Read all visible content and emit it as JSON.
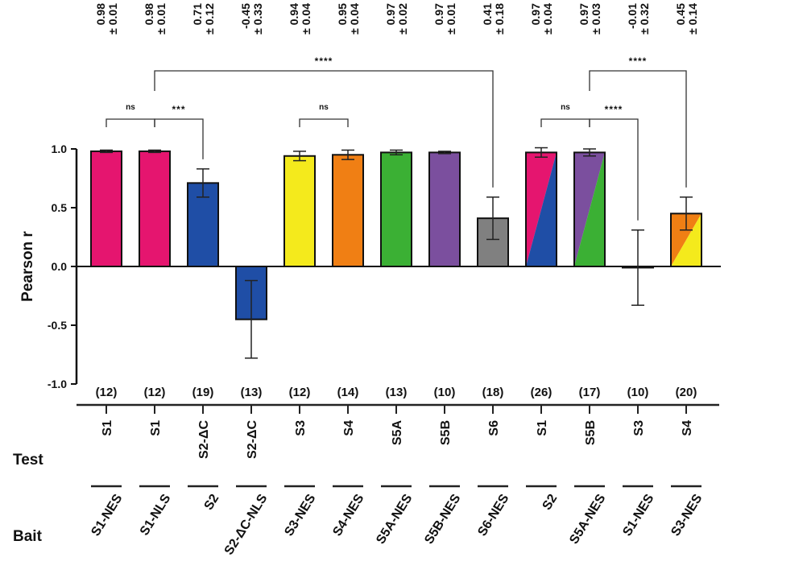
{
  "chart_data": {
    "type": "bar",
    "ylabel": "Pearson r",
    "ylim": [
      -1.0,
      1.0
    ],
    "yticks": [
      "1.0",
      "0.5",
      "0.0",
      "-0.5",
      "-1.0"
    ],
    "ytick_values": [
      1.0,
      0.5,
      0.0,
      -0.5,
      -1.0
    ],
    "row_labels": {
      "test": "Test",
      "bait": "Bait"
    },
    "categories": [
      {
        "test": "S1",
        "bait": "S1-NES",
        "mean": 0.98,
        "sd": 0.01,
        "n": "(12)",
        "mean_label": "0.98",
        "sd_label": "± 0.01",
        "colors": [
          "#e5156f"
        ]
      },
      {
        "test": "S1",
        "bait": "S1-NLS",
        "mean": 0.98,
        "sd": 0.01,
        "n": "(12)",
        "mean_label": "0.98",
        "sd_label": "± 0.01",
        "colors": [
          "#e5156f"
        ]
      },
      {
        "test": "S2-ΔC",
        "bait": "S2",
        "mean": 0.71,
        "sd": 0.12,
        "n": "(19)",
        "mean_label": "0.71",
        "sd_label": "± 0.12",
        "colors": [
          "#1f4ea6"
        ]
      },
      {
        "test": "S2-ΔC",
        "bait": "S2-ΔC-NLS",
        "mean": -0.45,
        "sd": 0.33,
        "n": "(13)",
        "mean_label": "-0.45",
        "sd_label": "± 0.33",
        "colors": [
          "#1f4ea6"
        ]
      },
      {
        "test": "S3",
        "bait": "S3-NES",
        "mean": 0.94,
        "sd": 0.04,
        "n": "(12)",
        "mean_label": "0.94",
        "sd_label": "± 0.04",
        "colors": [
          "#f4ea1c"
        ]
      },
      {
        "test": "S4",
        "bait": "S4-NES",
        "mean": 0.95,
        "sd": 0.04,
        "n": "(14)",
        "mean_label": "0.95",
        "sd_label": "± 0.04",
        "colors": [
          "#f07f14"
        ]
      },
      {
        "test": "S5A",
        "bait": "S5A-NES",
        "mean": 0.97,
        "sd": 0.02,
        "n": "(13)",
        "mean_label": "0.97",
        "sd_label": "± 0.02",
        "colors": [
          "#3bb034"
        ]
      },
      {
        "test": "S5B",
        "bait": "S5B-NES",
        "mean": 0.97,
        "sd": 0.01,
        "n": "(10)",
        "mean_label": "0.97",
        "sd_label": "± 0.01",
        "colors": [
          "#7b4f9e"
        ]
      },
      {
        "test": "S6",
        "bait": "S6-NES",
        "mean": 0.41,
        "sd": 0.18,
        "n": "(18)",
        "mean_label": "0.41",
        "sd_label": "± 0.18",
        "colors": [
          "#808080"
        ]
      },
      {
        "test": "S1",
        "bait": "S2",
        "mean": 0.97,
        "sd": 0.04,
        "n": "(26)",
        "mean_label": "0.97",
        "sd_label": "± 0.04",
        "colors": [
          "#e5156f",
          "#1f4ea6"
        ]
      },
      {
        "test": "S5B",
        "bait": "S5A-NES",
        "mean": 0.97,
        "sd": 0.03,
        "n": "(17)",
        "mean_label": "0.97",
        "sd_label": "± 0.03",
        "colors": [
          "#7b4f9e",
          "#3bb034"
        ]
      },
      {
        "test": "S3",
        "bait": "S1-NES",
        "mean": -0.01,
        "sd": 0.32,
        "n": "(10)",
        "mean_label": "-0.01",
        "sd_label": "± 0.32",
        "colors": [
          "#f4ea1c"
        ]
      },
      {
        "test": "S4",
        "bait": "S3-NES",
        "mean": 0.45,
        "sd": 0.14,
        "n": "(20)",
        "mean_label": "0.45",
        "sd_label": "± 0.14",
        "colors": [
          "#f07f14",
          "#f4ea1c"
        ]
      }
    ],
    "significance": [
      {
        "from": 0,
        "to": 1,
        "label": "ns",
        "level": "low"
      },
      {
        "from": 1,
        "to": 2,
        "label": "***",
        "level": "low"
      },
      {
        "from": 4,
        "to": 5,
        "label": "ns",
        "level": "low"
      },
      {
        "from": 1,
        "to": 8,
        "label": "****",
        "level": "high"
      },
      {
        "from": 9,
        "to": 10,
        "label": "ns",
        "level": "low"
      },
      {
        "from": 10,
        "to": 11,
        "label": "****",
        "level": "low"
      },
      {
        "from": 10,
        "to": 12,
        "label": "****",
        "level": "high"
      }
    ]
  }
}
